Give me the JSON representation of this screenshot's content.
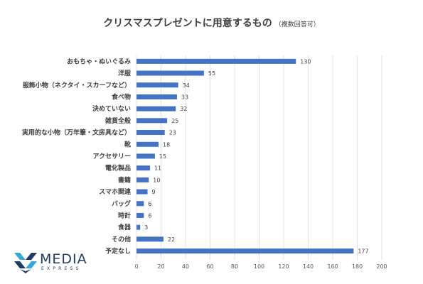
{
  "header": {
    "title": "クリスマスプレゼントに用意するもの",
    "note": "（複数回答可）"
  },
  "logo": {
    "name": "MEDIA",
    "sub": "EXPRESS"
  },
  "colors": {
    "bar": "#4472c4",
    "grid": "#d9d9d9",
    "text": "#404040",
    "logo": "#1f3b63",
    "logo_accent": "#35a8d8"
  },
  "chart_data": {
    "type": "bar",
    "orientation": "horizontal",
    "title": "クリスマスプレゼントに用意するもの",
    "subtitle": "（複数回答可）",
    "categories": [
      "おもちゃ・ぬいぐるみ",
      "洋服",
      "服飾小物（ネクタイ・スカーフなど）",
      "食べ物",
      "決めていない",
      "雑貨全般",
      "実用的な小物（万年筆・文房具など）",
      "靴",
      "アクセサリー",
      "電化製品",
      "書籍",
      "スマホ関連",
      "バッグ",
      "時計",
      "食器",
      "その他",
      "予定なし"
    ],
    "values": [
      130,
      55,
      34,
      33,
      32,
      25,
      23,
      18,
      15,
      11,
      10,
      9,
      6,
      6,
      3,
      22,
      177
    ],
    "xlim": [
      0,
      200
    ],
    "xticks": [
      0,
      20,
      40,
      60,
      80,
      100,
      120,
      140,
      160,
      180,
      200
    ],
    "grid": "vertical",
    "legend": "none"
  }
}
